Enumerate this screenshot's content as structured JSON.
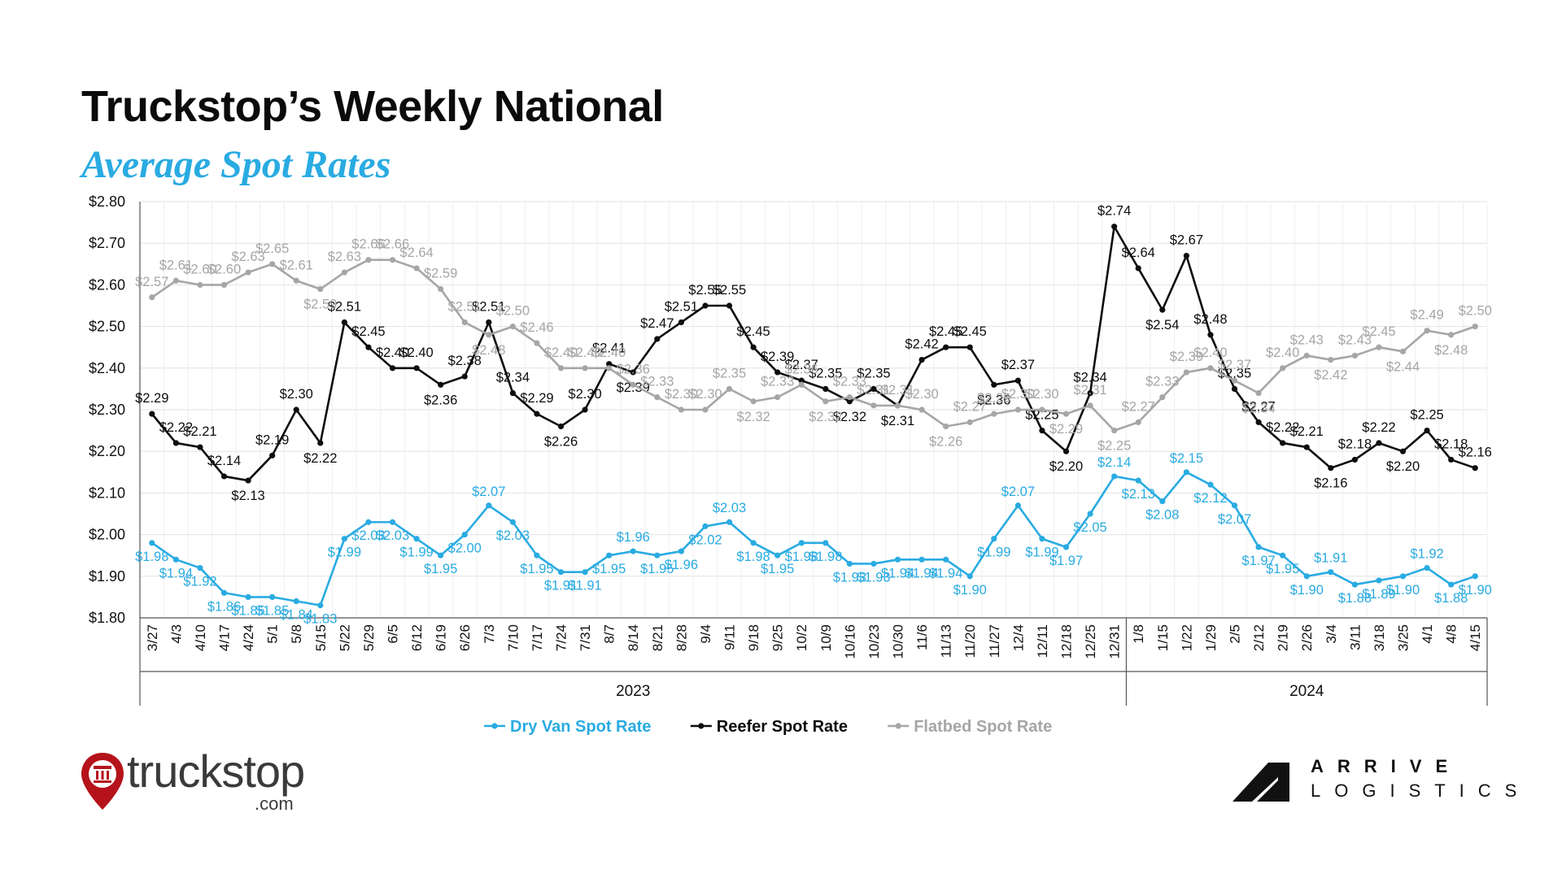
{
  "title": "Truckstop’s Weekly National",
  "subtitle": "Average Spot Rates",
  "logos": {
    "left_word": "truckstop",
    "left_suffix": ".com",
    "right_line1": "ARRIVE",
    "right_line2": "LOGISTICS"
  },
  "chart_data": {
    "type": "line",
    "ylim": [
      1.8,
      2.8
    ],
    "yticks": [
      1.8,
      1.9,
      2.0,
      2.1,
      2.2,
      2.3,
      2.4,
      2.5,
      2.6,
      2.7,
      2.8
    ],
    "ytick_labels": [
      "$1.80",
      "$1.90",
      "$2.00",
      "$2.10",
      "$2.20",
      "$2.30",
      "$2.40",
      "$2.50",
      "$2.60",
      "$2.70",
      "$2.80"
    ],
    "grid": true,
    "legend": "bottom",
    "categories": [
      "3/27",
      "4/3",
      "4/10",
      "4/17",
      "4/24",
      "5/1",
      "5/8",
      "5/15",
      "5/22",
      "5/29",
      "6/5",
      "6/12",
      "6/19",
      "6/26",
      "7/3",
      "7/10",
      "7/17",
      "7/24",
      "7/31",
      "8/7",
      "8/14",
      "8/21",
      "8/28",
      "9/4",
      "9/11",
      "9/18",
      "9/25",
      "10/2",
      "10/9",
      "10/16",
      "10/23",
      "10/30",
      "11/6",
      "11/13",
      "11/20",
      "11/27",
      "12/4",
      "12/11",
      "12/18",
      "12/25",
      "12/31",
      "1/8",
      "1/15",
      "1/22",
      "1/29",
      "2/5",
      "2/12",
      "2/19",
      "2/26",
      "3/4",
      "3/11",
      "3/18",
      "3/25",
      "4/1",
      "4/8",
      "4/15"
    ],
    "year_groups": [
      {
        "label": "2023",
        "start": 0,
        "end": 40
      },
      {
        "label": "2024",
        "start": 41,
        "end": 55
      }
    ],
    "series": [
      {
        "name": "Dry Van Spot Rate",
        "color": "#29abe2",
        "values": [
          1.98,
          1.94,
          1.92,
          1.86,
          1.85,
          1.85,
          1.84,
          1.83,
          1.99,
          2.03,
          2.03,
          1.99,
          1.95,
          2.0,
          2.07,
          2.03,
          1.95,
          1.91,
          1.91,
          1.95,
          1.96,
          1.95,
          1.96,
          2.02,
          2.03,
          1.98,
          1.95,
          1.98,
          1.98,
          1.93,
          1.93,
          1.94,
          1.94,
          1.94,
          1.9,
          1.99,
          2.07,
          1.99,
          1.97,
          2.05,
          2.14,
          2.13,
          2.08,
          2.15,
          2.12,
          2.07,
          1.97,
          1.95,
          1.9,
          1.91,
          1.88,
          1.89,
          1.9,
          1.92,
          1.88,
          1.9
        ]
      },
      {
        "name": "Reefer Spot Rate",
        "color": "#0d0d0d",
        "values": [
          2.29,
          2.22,
          2.21,
          2.14,
          2.13,
          2.19,
          2.3,
          2.22,
          2.51,
          2.45,
          2.4,
          2.4,
          2.36,
          2.38,
          2.51,
          2.34,
          2.29,
          2.26,
          2.3,
          2.41,
          2.39,
          2.47,
          2.51,
          2.55,
          2.55,
          2.45,
          2.39,
          2.37,
          2.35,
          2.32,
          2.35,
          2.31,
          2.42,
          2.45,
          2.45,
          2.36,
          2.37,
          2.25,
          2.2,
          2.34,
          2.74,
          2.64,
          2.54,
          2.67,
          2.48,
          2.35,
          2.27,
          2.22,
          2.21,
          2.16,
          2.18,
          2.22,
          2.2,
          2.25,
          2.18,
          2.16
        ]
      },
      {
        "name": "Flatbed Spot Rate",
        "color": "#a6a6a6",
        "values": [
          2.57,
          2.61,
          2.6,
          2.6,
          2.63,
          2.65,
          2.61,
          2.59,
          2.63,
          2.66,
          2.66,
          2.64,
          2.59,
          2.51,
          2.48,
          2.5,
          2.46,
          2.4,
          2.4,
          2.4,
          2.36,
          2.33,
          2.3,
          2.3,
          2.35,
          2.32,
          2.33,
          2.36,
          2.32,
          2.33,
          2.31,
          2.31,
          2.3,
          2.26,
          2.27,
          2.29,
          2.3,
          2.3,
          2.29,
          2.31,
          2.25,
          2.27,
          2.33,
          2.39,
          2.4,
          2.37,
          2.34,
          2.4,
          2.43,
          2.42,
          2.43,
          2.45,
          2.44,
          2.49,
          2.48,
          2.5
        ]
      }
    ]
  }
}
